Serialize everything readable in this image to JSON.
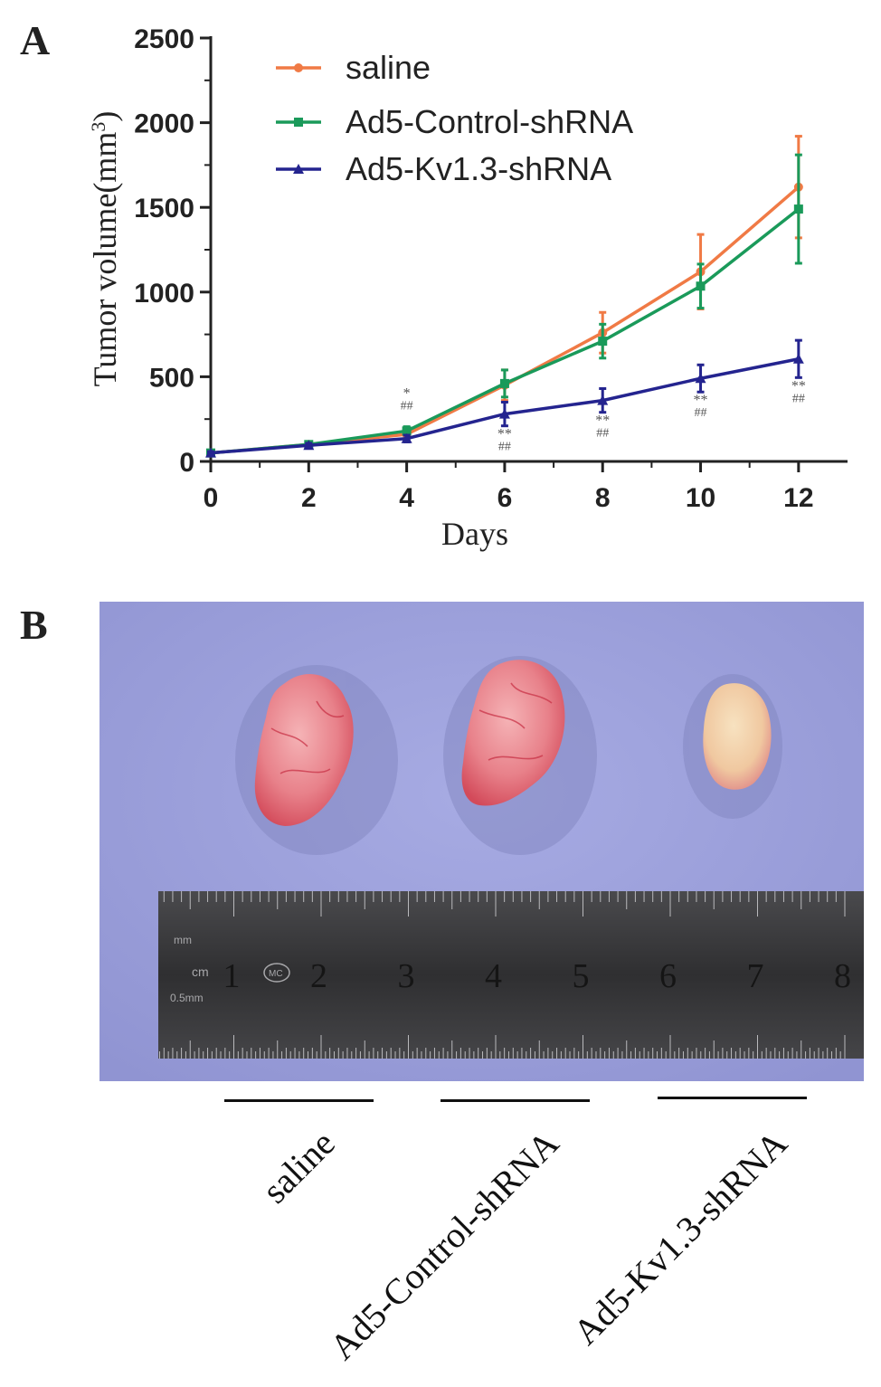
{
  "panel_a_label": "A",
  "panel_b_label": "B",
  "chart_data": {
    "type": "line",
    "title": "",
    "xlabel": "Days",
    "ylabel": "Tumor volume(mm³)",
    "ylabel_main": "Tumor volume(mm",
    "ylabel_sup": "3",
    "ylabel_close": ")",
    "x": [
      0,
      2,
      4,
      6,
      8,
      10,
      12
    ],
    "xlim": [
      0,
      13
    ],
    "ylim": [
      0,
      2500
    ],
    "x_ticks": [
      "0",
      "2",
      "4",
      "6",
      "8",
      "10",
      "12"
    ],
    "y_ticks": [
      "0",
      "500",
      "1000",
      "1500",
      "2000",
      "2500"
    ],
    "legend_position": "top-left",
    "series": [
      {
        "name": "saline",
        "color": "#f07a45",
        "marker": "circle",
        "values": [
          50,
          100,
          160,
          450,
          760,
          1120,
          1620
        ],
        "errors": [
          8,
          15,
          25,
          90,
          120,
          220,
          300
        ]
      },
      {
        "name": "Ad5-Control-shRNA",
        "color": "#1a9a5a",
        "marker": "square",
        "values": [
          50,
          100,
          180,
          460,
          710,
          1035,
          1490
        ],
        "errors": [
          8,
          15,
          25,
          80,
          100,
          130,
          320
        ]
      },
      {
        "name": "Ad5-Kv1.3-shRNA",
        "color": "#24248f",
        "marker": "triangle",
        "values": [
          50,
          95,
          135,
          280,
          360,
          490,
          605
        ],
        "errors": [
          8,
          12,
          20,
          70,
          70,
          80,
          110
        ]
      }
    ],
    "annotations": [
      {
        "x": 4,
        "star": "*",
        "hash": "##",
        "place": "above"
      },
      {
        "x": 6,
        "star": "**",
        "hash": "##",
        "place": "below"
      },
      {
        "x": 8,
        "star": "**",
        "hash": "##",
        "place": "below"
      },
      {
        "x": 10,
        "star": "**",
        "hash": "##",
        "place": "below"
      },
      {
        "x": 12,
        "star": "**",
        "hash": "##",
        "place": "below"
      }
    ]
  },
  "photo": {
    "background_color": "#9ea3dd",
    "ruler_color": "#3a3a3c",
    "ruler_numbers": [
      "1",
      "2",
      "3",
      "4",
      "5",
      "6",
      "7",
      "8"
    ],
    "ruler_unit_cm": "cm",
    "ruler_unit_mm": "mm",
    "ruler_unit_05mm": "0.5mm",
    "ruler_logo": "MC",
    "tumor_colors": [
      "#e8818a",
      "#e8828a",
      "#f0c8a0"
    ]
  },
  "group_labels": [
    "saline",
    "Ad5-Control-shRNA",
    "Ad5-Kv1.3-shRNA"
  ]
}
